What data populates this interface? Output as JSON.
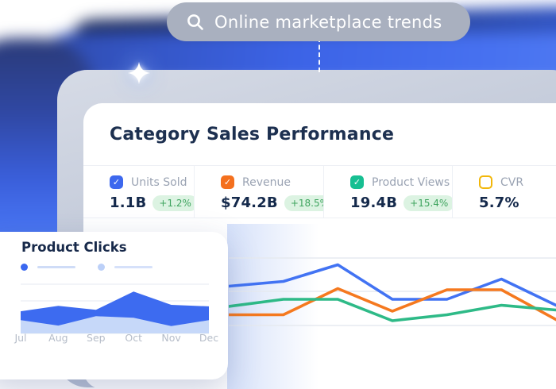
{
  "search": {
    "query": "Online marketplace trends"
  },
  "dashboard": {
    "title": "Category Sales Performance",
    "metrics": [
      {
        "label": "Units Sold",
        "value": "1.1B",
        "delta": "+1.2%",
        "color": "#3d68ee",
        "checked": true
      },
      {
        "label": "Revenue",
        "value": "$74.2B",
        "delta": "+18.5%",
        "color": "#f4701e",
        "checked": true
      },
      {
        "label": "Product Views",
        "value": "19.4B",
        "delta": "+15.4%",
        "color": "#17bf92",
        "checked": true
      },
      {
        "label": "CVR",
        "value": "5.7%",
        "delta": null,
        "color": "#f2b70a",
        "checked": false
      }
    ],
    "badge_colors": {
      "text": "#3fa45f",
      "bg": "#dcf3e2"
    }
  },
  "clicks_card": {
    "title": "Product Clicks"
  },
  "chart_data": [
    {
      "id": "category-trends",
      "type": "line",
      "x": [
        1,
        2,
        3,
        4,
        5,
        6,
        7
      ],
      "title": "Category Sales Performance",
      "xlabel": "",
      "ylabel": "",
      "ylim": [
        0,
        100
      ],
      "grid": true,
      "legend_position": "none",
      "series": [
        {
          "name": "Units Sold",
          "color": "#4273f3",
          "values": [
            53,
            57,
            71,
            42,
            42,
            59,
            37
          ]
        },
        {
          "name": "Revenue",
          "color": "#f5791f",
          "values": [
            29,
            29,
            51,
            32,
            50,
            50,
            25
          ]
        },
        {
          "name": "Product Views",
          "color": "#2eba87",
          "values": [
            36,
            42,
            42,
            24,
            29,
            37,
            33
          ]
        }
      ]
    },
    {
      "id": "product-clicks",
      "type": "area",
      "title": "Product Clicks",
      "categories": [
        "Jul",
        "Aug",
        "Sep",
        "Oct",
        "Nov",
        "Dec"
      ],
      "ylim": [
        0,
        100
      ],
      "grid": true,
      "series": [
        {
          "name": "clicks-primary",
          "color": "#3d6bf0",
          "values": [
            45,
            56,
            48,
            85,
            58,
            55
          ]
        },
        {
          "name": "clicks-secondary",
          "color": "#c6d8f9",
          "values": [
            27,
            16,
            35,
            32,
            15,
            27
          ]
        }
      ]
    }
  ]
}
